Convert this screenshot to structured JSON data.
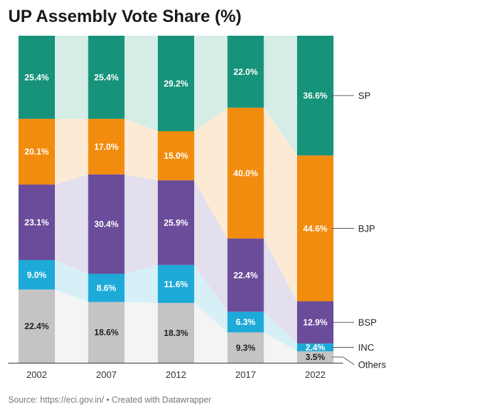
{
  "title": "UP Assembly Vote Share (%)",
  "source": "Source: https://eci.gov.in/ • Created with Datawrapper",
  "chart_data": {
    "type": "bar",
    "stacked": true,
    "percent_stacked": true,
    "categories": [
      "2002",
      "2007",
      "2012",
      "2017",
      "2022"
    ],
    "series": [
      {
        "name": "Others",
        "values": [
          22.4,
          18.6,
          18.3,
          9.3,
          3.5
        ],
        "labels": [
          "22.4%",
          "18.6%",
          "18.3%",
          "9.3%",
          "3.5%"
        ],
        "color": "#c4c4c4",
        "label_color": "#222222"
      },
      {
        "name": "INC",
        "values": [
          9.0,
          8.6,
          11.6,
          6.3,
          2.4
        ],
        "labels": [
          "9.0%",
          "8.6%",
          "11.6%",
          "6.3%",
          "2.4%"
        ],
        "color": "#1eaad8",
        "label_color": "#ffffff"
      },
      {
        "name": "BSP",
        "values": [
          23.1,
          30.4,
          25.9,
          22.4,
          12.9
        ],
        "labels": [
          "23.1%",
          "30.4%",
          "25.9%",
          "22.4%",
          "12.9%"
        ],
        "color": "#6b4c9a",
        "label_color": "#ffffff"
      },
      {
        "name": "BJP",
        "values": [
          20.1,
          17.0,
          15.0,
          40.0,
          44.6
        ],
        "labels": [
          "20.1%",
          "17.0%",
          "15.0%",
          "40.0%",
          "44.6%"
        ],
        "color": "#f28c0f",
        "label_color": "#ffffff"
      },
      {
        "name": "SP",
        "values": [
          25.4,
          25.4,
          29.2,
          22.0,
          36.6
        ],
        "labels": [
          "25.4%",
          "25.4%",
          "29.2%",
          "22.0%",
          "36.6%"
        ],
        "color": "#16937a",
        "label_color": "#ffffff"
      }
    ],
    "legend": "right",
    "grid": false
  }
}
